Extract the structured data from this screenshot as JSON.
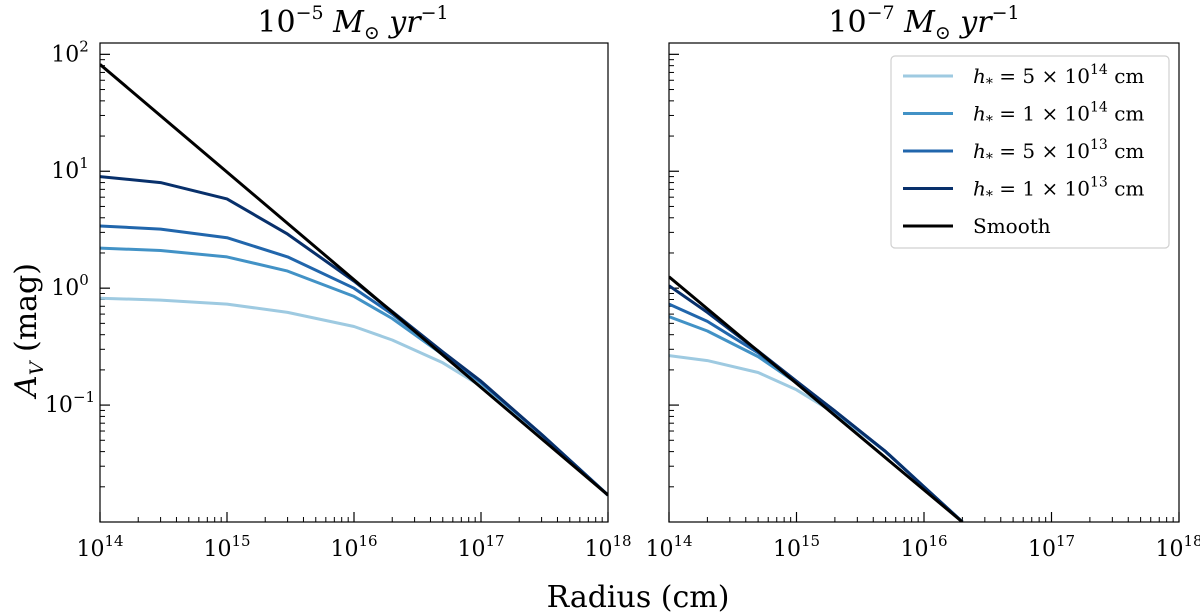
{
  "figure": {
    "xlabel": "Radius (cm)",
    "ylabel_main": "A",
    "ylabel_sub": "V",
    "ylabel_unit": " (mag)"
  },
  "legend": {
    "entries": [
      {
        "pre": "h",
        "sub": "*",
        "mid": " = 5 × 10",
        "exp": "14",
        "post": " cm",
        "color": "#9ecae1"
      },
      {
        "pre": "h",
        "sub": "*",
        "mid": " = 1 × 10",
        "exp": "14",
        "post": " cm",
        "color": "#4292c6"
      },
      {
        "pre": "h",
        "sub": "*",
        "mid": " = 5 × 10",
        "exp": "13",
        "post": " cm",
        "color": "#2166ac"
      },
      {
        "pre": "h",
        "sub": "*",
        "mid": " = 1 × 10",
        "exp": "13",
        "post": " cm",
        "color": "#08306b"
      },
      {
        "pre": "Smooth",
        "sub": "",
        "mid": "",
        "exp": "",
        "post": "",
        "color": "#000000"
      }
    ]
  },
  "chart_data": [
    {
      "type": "line",
      "title": {
        "base": "10",
        "exp": "−5",
        "rest": " M",
        "sub": "⊙",
        "tail": " yr",
        "tail_exp": "−1"
      },
      "xscale": "log",
      "yscale": "log",
      "xlim": [
        100000000000000.0,
        1e+18
      ],
      "ylim": [
        0.01,
        125
      ],
      "xticks": [
        {
          "base": "10",
          "exp": "14",
          "value": 100000000000000.0
        },
        {
          "base": "10",
          "exp": "15",
          "value": 1000000000000000.0
        },
        {
          "base": "10",
          "exp": "16",
          "value": 1e+16
        },
        {
          "base": "10",
          "exp": "17",
          "value": 1e+17
        },
        {
          "base": "10",
          "exp": "18",
          "value": 1e+18
        }
      ],
      "yticks": [
        {
          "base": "10",
          "exp": "−1",
          "value": 0.1
        },
        {
          "base": "10",
          "exp": "0",
          "value": 1
        },
        {
          "base": "10",
          "exp": "1",
          "value": 10
        },
        {
          "base": "10",
          "exp": "2",
          "value": 100
        }
      ],
      "series": [
        {
          "legend_index": 0,
          "color": "#9ecae1",
          "x": [
            100000000000000.0,
            300000000000000.0,
            1000000000000000.0,
            3000000000000000.0,
            1e+16,
            2e+16,
            5e+16,
            1e+17,
            3e+17,
            1e+18
          ],
          "y": [
            0.82,
            0.79,
            0.73,
            0.62,
            0.47,
            0.36,
            0.23,
            0.145,
            0.055,
            0.017
          ]
        },
        {
          "legend_index": 1,
          "color": "#4292c6",
          "x": [
            100000000000000.0,
            300000000000000.0,
            1000000000000000.0,
            3000000000000000.0,
            1e+16,
            2e+16,
            5e+16,
            1e+17,
            3e+17,
            1e+18
          ],
          "y": [
            2.2,
            2.1,
            1.85,
            1.4,
            0.85,
            0.55,
            0.27,
            0.155,
            0.056,
            0.017
          ]
        },
        {
          "legend_index": 2,
          "color": "#2166ac",
          "x": [
            100000000000000.0,
            300000000000000.0,
            1000000000000000.0,
            3000000000000000.0,
            1e+16,
            2e+16,
            5e+16,
            1e+17,
            3e+17,
            1e+18
          ],
          "y": [
            3.4,
            3.2,
            2.7,
            1.85,
            1.0,
            0.6,
            0.28,
            0.158,
            0.056,
            0.017
          ]
        },
        {
          "legend_index": 3,
          "color": "#08306b",
          "x": [
            100000000000000.0,
            300000000000000.0,
            1000000000000000.0,
            3000000000000000.0,
            1e+16,
            2e+16,
            5e+16,
            1e+17,
            3e+17,
            1e+18
          ],
          "y": [
            9.0,
            8.0,
            5.8,
            2.9,
            1.15,
            0.63,
            0.285,
            0.16,
            0.056,
            0.017
          ]
        },
        {
          "legend_index": 4,
          "color": "#000000",
          "x": [
            100000000000000.0,
            1e+18
          ],
          "y": [
            82,
            0.017
          ]
        }
      ]
    },
    {
      "type": "line",
      "title": {
        "base": "10",
        "exp": "−7",
        "rest": " M",
        "sub": "⊙",
        "tail": " yr",
        "tail_exp": "−1"
      },
      "xscale": "log",
      "yscale": "log",
      "xlim": [
        100000000000000.0,
        1e+18
      ],
      "ylim": [
        0.01,
        125
      ],
      "xticks": [
        {
          "base": "10",
          "exp": "14",
          "value": 100000000000000.0
        },
        {
          "base": "10",
          "exp": "15",
          "value": 1000000000000000.0
        },
        {
          "base": "10",
          "exp": "16",
          "value": 1e+16
        },
        {
          "base": "10",
          "exp": "17",
          "value": 1e+17
        },
        {
          "base": "10",
          "exp": "18",
          "value": 1e+18
        }
      ],
      "yticks_shared": true,
      "series": [
        {
          "legend_index": 0,
          "color": "#9ecae1",
          "x": [
            100000000000000.0,
            200000000000000.0,
            500000000000000.0,
            1000000000000000.0,
            2000000000000000.0,
            5000000000000000.0,
            1e+16,
            2e+16
          ],
          "y": [
            0.265,
            0.24,
            0.19,
            0.135,
            0.085,
            0.04,
            0.02,
            0.01
          ]
        },
        {
          "legend_index": 1,
          "color": "#4292c6",
          "x": [
            100000000000000.0,
            200000000000000.0,
            500000000000000.0,
            1000000000000000.0,
            2000000000000000.0,
            5000000000000000.0,
            1e+16,
            2e+16
          ],
          "y": [
            0.57,
            0.43,
            0.26,
            0.155,
            0.088,
            0.04,
            0.02,
            0.01
          ]
        },
        {
          "legend_index": 2,
          "color": "#2166ac",
          "x": [
            100000000000000.0,
            200000000000000.0,
            500000000000000.0,
            1000000000000000.0,
            2000000000000000.0,
            5000000000000000.0,
            1e+16,
            2e+16
          ],
          "y": [
            0.73,
            0.52,
            0.28,
            0.158,
            0.089,
            0.04,
            0.02,
            0.01
          ]
        },
        {
          "legend_index": 3,
          "color": "#08306b",
          "x": [
            100000000000000.0,
            200000000000000.0,
            500000000000000.0,
            1000000000000000.0,
            2000000000000000.0,
            5000000000000000.0,
            1e+16,
            2e+16
          ],
          "y": [
            1.05,
            0.62,
            0.29,
            0.16,
            0.089,
            0.04,
            0.02,
            0.01
          ]
        },
        {
          "legend_index": 4,
          "color": "#000000",
          "x": [
            100000000000000.0,
            2e+16
          ],
          "y": [
            1.25,
            0.01
          ]
        }
      ]
    }
  ]
}
